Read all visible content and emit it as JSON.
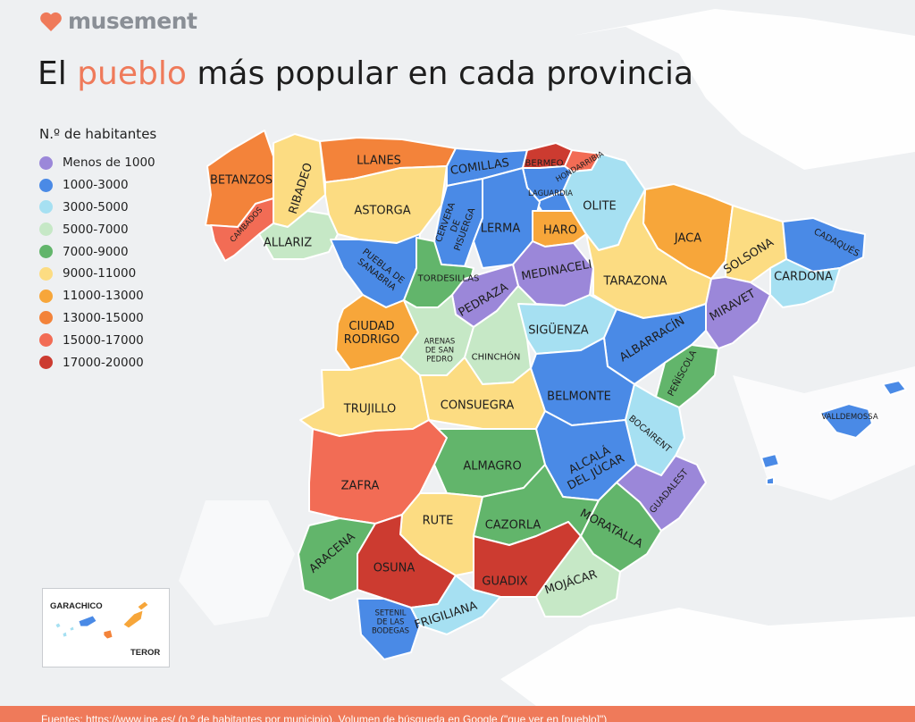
{
  "brand": {
    "name": "musement"
  },
  "title": {
    "part1": "El ",
    "highlight": "pueblo",
    "part2": " más popular en cada provincia"
  },
  "legend": {
    "title": "N.º de habitantes",
    "items": [
      {
        "label": "Menos de 1000",
        "color": "#9b87d9"
      },
      {
        "label": "1000-3000",
        "color": "#4a8ae6"
      },
      {
        "label": "3000-5000",
        "color": "#a6e0f2"
      },
      {
        "label": "5000-7000",
        "color": "#c6e8c6"
      },
      {
        "label": "7000-9000",
        "color": "#62b56b"
      },
      {
        "label": "9000-11000",
        "color": "#fcdc82"
      },
      {
        "label": "11000-13000",
        "color": "#f7a63a"
      },
      {
        "label": "13000-15000",
        "color": "#f3833a"
      },
      {
        "label": "15000-17000",
        "color": "#f26c55"
      },
      {
        "label": "17000-20000",
        "color": "#cc3b30"
      }
    ]
  },
  "canarias": {
    "label_left": "GARACHICO",
    "label_right": "TEROR"
  },
  "towns": [
    {
      "name": "BETANZOS"
    },
    {
      "name": "RIBADEO"
    },
    {
      "name": "LLANES"
    },
    {
      "name": "COMILLAS"
    },
    {
      "name": "BERMEO"
    },
    {
      "name": "HONDARRIBIA"
    },
    {
      "name": "LAGUARDIA"
    },
    {
      "name": "OLITE"
    },
    {
      "name": "JACA"
    },
    {
      "name": "CADAQUÉS"
    },
    {
      "name": "CAMBADOS"
    },
    {
      "name": "ALLARIZ"
    },
    {
      "name": "ASTORGA"
    },
    {
      "name": "CERVERA\nDE\nPISUERGA"
    },
    {
      "name": "LERMA"
    },
    {
      "name": "HARO"
    },
    {
      "name": "SOLSONA"
    },
    {
      "name": "CARDONA"
    },
    {
      "name": "PUEBLA DE\nSANABRIA"
    },
    {
      "name": "TORDESILLAS"
    },
    {
      "name": "MEDINACELI"
    },
    {
      "name": "TARAZONA"
    },
    {
      "name": "PEDRAZA"
    },
    {
      "name": "MIRAVET"
    },
    {
      "name": "CIUDAD\nRODRIGO"
    },
    {
      "name": "ARENAS\nDE SAN\nPEDRO"
    },
    {
      "name": "SIGÜENZA"
    },
    {
      "name": "ALBARRACÍN"
    },
    {
      "name": "CHINCHÓN"
    },
    {
      "name": "PEÑÍSCOLA"
    },
    {
      "name": "TRUJILLO"
    },
    {
      "name": "CONSUEGRA"
    },
    {
      "name": "BELMONTE"
    },
    {
      "name": "VALLDEMOSSA"
    },
    {
      "name": "BOCAIRENT"
    },
    {
      "name": "ALMAGRO"
    },
    {
      "name": "ALCALÁ\nDEL JÚCAR"
    },
    {
      "name": "ZAFRA"
    },
    {
      "name": "GUADALEST"
    },
    {
      "name": "RUTE"
    },
    {
      "name": "CAZORLA"
    },
    {
      "name": "MORATALLA"
    },
    {
      "name": "ARACENA"
    },
    {
      "name": "OSUNA"
    },
    {
      "name": "GUADIX"
    },
    {
      "name": "MOJÁCAR"
    },
    {
      "name": "SETENIL\nDE LAS\nBODEGAS"
    },
    {
      "name": "FRIGILIANA"
    }
  ],
  "footer": {
    "text": "Fuentes: https://www.ine.es/ (n.º de habitantes por municipio), Volumen de búsqueda en Google (\"que ver en [pueblo]\")"
  }
}
